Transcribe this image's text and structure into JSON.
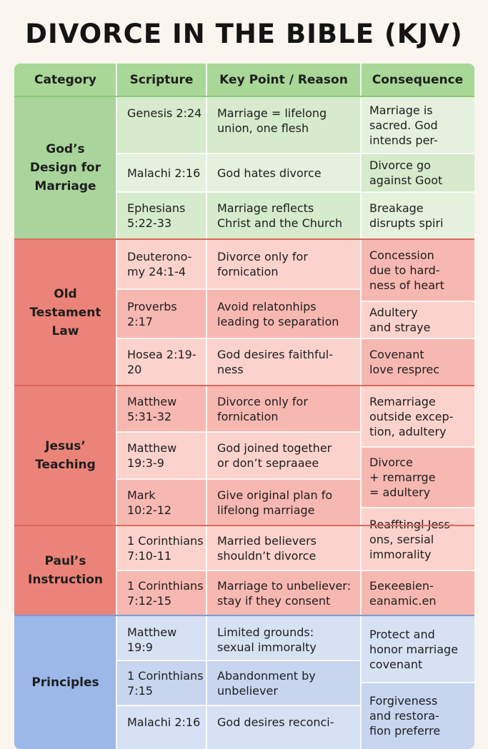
{
  "title": "DIVORCE IN THE BIBLE (KJV)",
  "headers": [
    "Category",
    "Scripture",
    "Key Point / Reason",
    "Consequence"
  ],
  "colors": {
    "header": "#a8d798",
    "green_a": "#d5ebcc",
    "green_b": "#e4f2dd",
    "green_cat": "#a9d59c",
    "red_a": "#f7b8b1",
    "red_b": "#fbd2cc",
    "red_cat": "#ec8379",
    "blue_a": "#c7d5ef",
    "blue_b": "#d7e1f4",
    "blue_cat": "#9bb8e8"
  },
  "categories": [
    {
      "lines": [
        "God’s",
        "Design for",
        "Marriage"
      ]
    },
    {
      "lines": [
        "Old",
        "Testament",
        "Law"
      ]
    },
    {
      "lines": [
        "Jesus’",
        "Teaching"
      ]
    },
    {
      "lines": [
        "Paul’s",
        "Instruction"
      ]
    },
    {
      "lines": [
        "Principles"
      ]
    }
  ],
  "rows": [
    {
      "scripture": [
        "Genesis 2:24"
      ],
      "key": [
        "Marriage = lifelong",
        "union, one flesh"
      ]
    },
    {
      "scripture": [
        "Malachi 2:16"
      ],
      "key": [
        "God hates divorce"
      ]
    },
    {
      "scripture": [
        "Ephesians",
        "5:22-33"
      ],
      "key": [
        "Marriage reflects",
        "Christ and the Church"
      ]
    },
    {
      "scripture": [
        "Deuterono-",
        "my 24:1-4"
      ],
      "key": [
        "Divorce only for",
        "fornication"
      ]
    },
    {
      "scripture": [
        "Proverbs",
        "2:17"
      ],
      "key": [
        "Avoid relatonhips",
        "leading to separation"
      ]
    },
    {
      "scripture": [
        "Hosea 2:19-",
        "20"
      ],
      "key": [
        "God desires faithful-",
        "ness"
      ]
    },
    {
      "scripture": [
        "Matthew",
        "5:31-32"
      ],
      "key": [
        "Divorce only for",
        "fornication"
      ]
    },
    {
      "scripture": [
        "Matthew",
        "19:3-9"
      ],
      "key": [
        "God joined together",
        "or don’t sepraaee"
      ]
    },
    {
      "scripture": [
        "Mark",
        "10:2-12"
      ],
      "key": [
        "Give original plan fo",
        "lifelong marriage"
      ]
    },
    {
      "scripture": [
        "1 Corinthians",
        "7:10-11"
      ],
      "key": [
        "Married believers",
        "shouldn’t divorce"
      ]
    },
    {
      "scripture": [
        "1 Corinthians",
        "7:12-15"
      ],
      "key": [
        "Marriage to unbeliever:",
        "stay if they consent"
      ]
    },
    {
      "scripture": [
        "Matthew 19:9"
      ],
      "key": [
        "Limited grounds:",
        "sexual immoralty"
      ]
    },
    {
      "scripture": [
        "1 Corinthians",
        "7:15"
      ],
      "key": [
        "Abandonment by",
        "unbeliever"
      ]
    },
    {
      "scripture": [
        "Malachi 2:16"
      ],
      "key": [
        "God desires reconci-"
      ]
    }
  ],
  "consequences": [
    {
      "lines": [
        "Marriage is",
        "sacred. God",
        "intends per-"
      ]
    },
    {
      "lines": [
        "Divorce go",
        "against Goot"
      ]
    },
    {
      "lines": [
        "Breakage",
        "disrupts spiri"
      ]
    },
    {
      "lines": [
        "Concession",
        "due to hard-",
        "ness of heart"
      ]
    },
    {
      "lines": [
        "Adultery",
        "and straye"
      ]
    },
    {
      "lines": [
        "Covenant",
        "love resprec"
      ]
    },
    {
      "lines": [
        "Remarriage",
        "outside excep-",
        "tion, adultery"
      ]
    },
    {
      "lines": [
        "Divorce",
        "+ remarrge",
        "= adultery"
      ]
    },
    {
      "lines": [
        "Reafftingl Jess-",
        "ons, sersial",
        "immorality"
      ]
    },
    {
      "lines": [
        "Бeкeeвien-",
        "eanamic.en"
      ]
    },
    {
      "lines": [
        "Protect and",
        "honor marriage",
        "covenant"
      ]
    },
    {
      "lines": [
        "Forgiveness",
        "and restora-",
        "fion preferre"
      ]
    }
  ]
}
